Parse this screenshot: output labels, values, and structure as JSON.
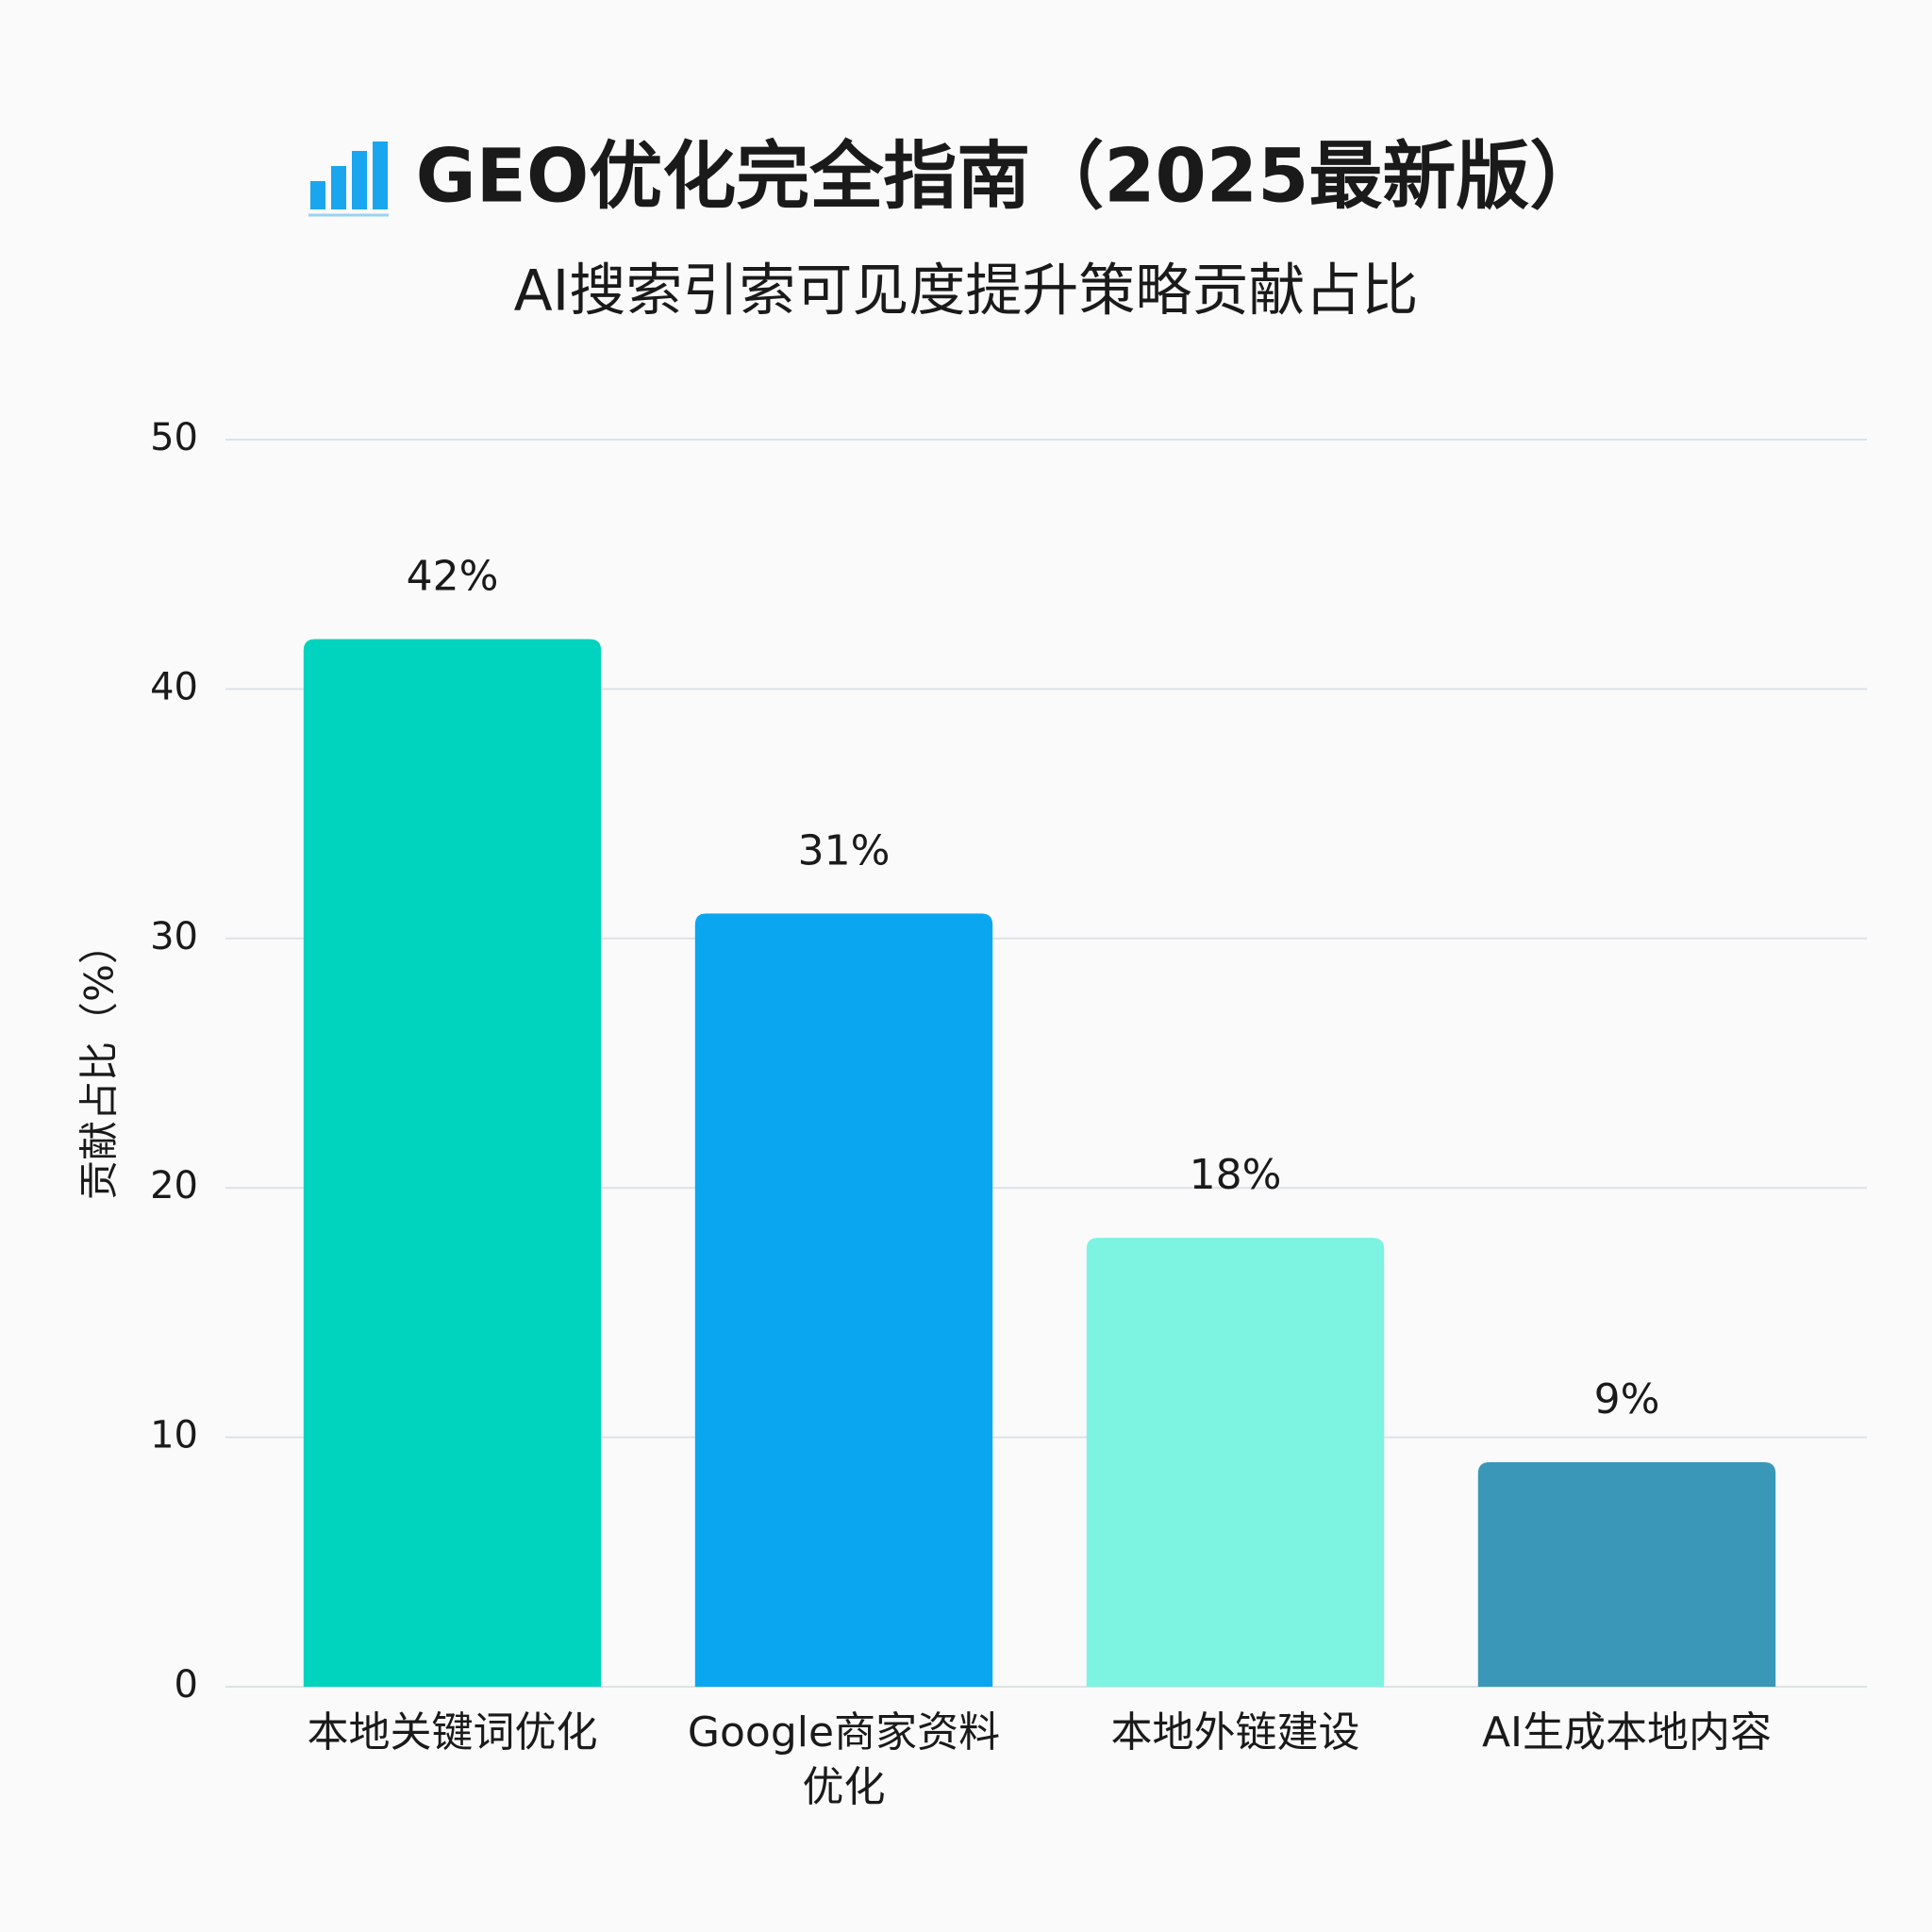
{
  "chart_data": {
    "type": "bar",
    "title": "GEO优化完全指南（2025最新版）",
    "subtitle": "AI搜索引索可见度提升策略贡献占比",
    "y_label": "贡献占比（%）",
    "categories": [
      "本地关键词优化",
      "Google商家资料优化",
      "本地外链建设",
      "AI生成本地内容"
    ],
    "values": [
      42,
      31,
      18,
      9
    ],
    "value_labels": [
      "42%",
      "31%",
      "18%",
      "9%"
    ],
    "colors": [
      "#00d4be",
      "#0aa6f0",
      "#7df3e1",
      "#3a97b8"
    ],
    "ylim": [
      0,
      50
    ],
    "yticks": [
      0,
      10,
      20,
      30,
      40,
      50
    ],
    "grid": true
  }
}
